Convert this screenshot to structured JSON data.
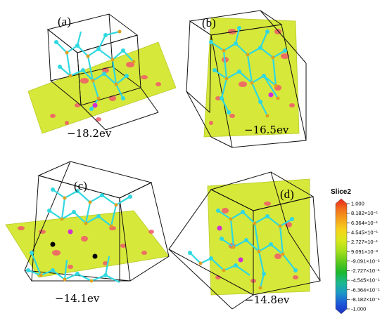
{
  "panels": [
    {
      "id": "a",
      "label": "(a)",
      "energy": "−18.2ev"
    },
    {
      "id": "b",
      "label": "(b)",
      "energy": "−16.5ev"
    },
    {
      "id": "c",
      "label": "(c)",
      "energy": "−14.1ev"
    },
    {
      "id": "d",
      "label": "(d)",
      "energy": "−14.8ev"
    }
  ],
  "legend": {
    "title": "Slice2",
    "ticks": [
      "1.000",
      "8.182×10⁻¹",
      "6.364×10⁻¹",
      "4.545×10⁻¹",
      "2.727×10⁻¹",
      "9.091×10⁻²",
      "-9.091×10⁻²",
      "-2.727×10⁻¹",
      "-4.545×10⁻¹",
      "-6.364×10⁻¹",
      "-8.182×10⁻¹",
      "-1.000"
    ],
    "colors": [
      "#e8231b",
      "#f2701c",
      "#f6a31c",
      "#f6d21c",
      "#d9e81c",
      "#a8e01c",
      "#5cc81c",
      "#1cb82c",
      "#1cb890",
      "#1c98c8",
      "#1c58d8",
      "#1c30c0"
    ]
  },
  "colors": {
    "plane": "#d6e83a",
    "plane_edge": "#b8c828",
    "spot": "#f05a6a",
    "atom_o": "#30d8e0",
    "atom_si": "#e0a020",
    "atom_ti": "#d030d0",
    "cell": "#111111"
  }
}
